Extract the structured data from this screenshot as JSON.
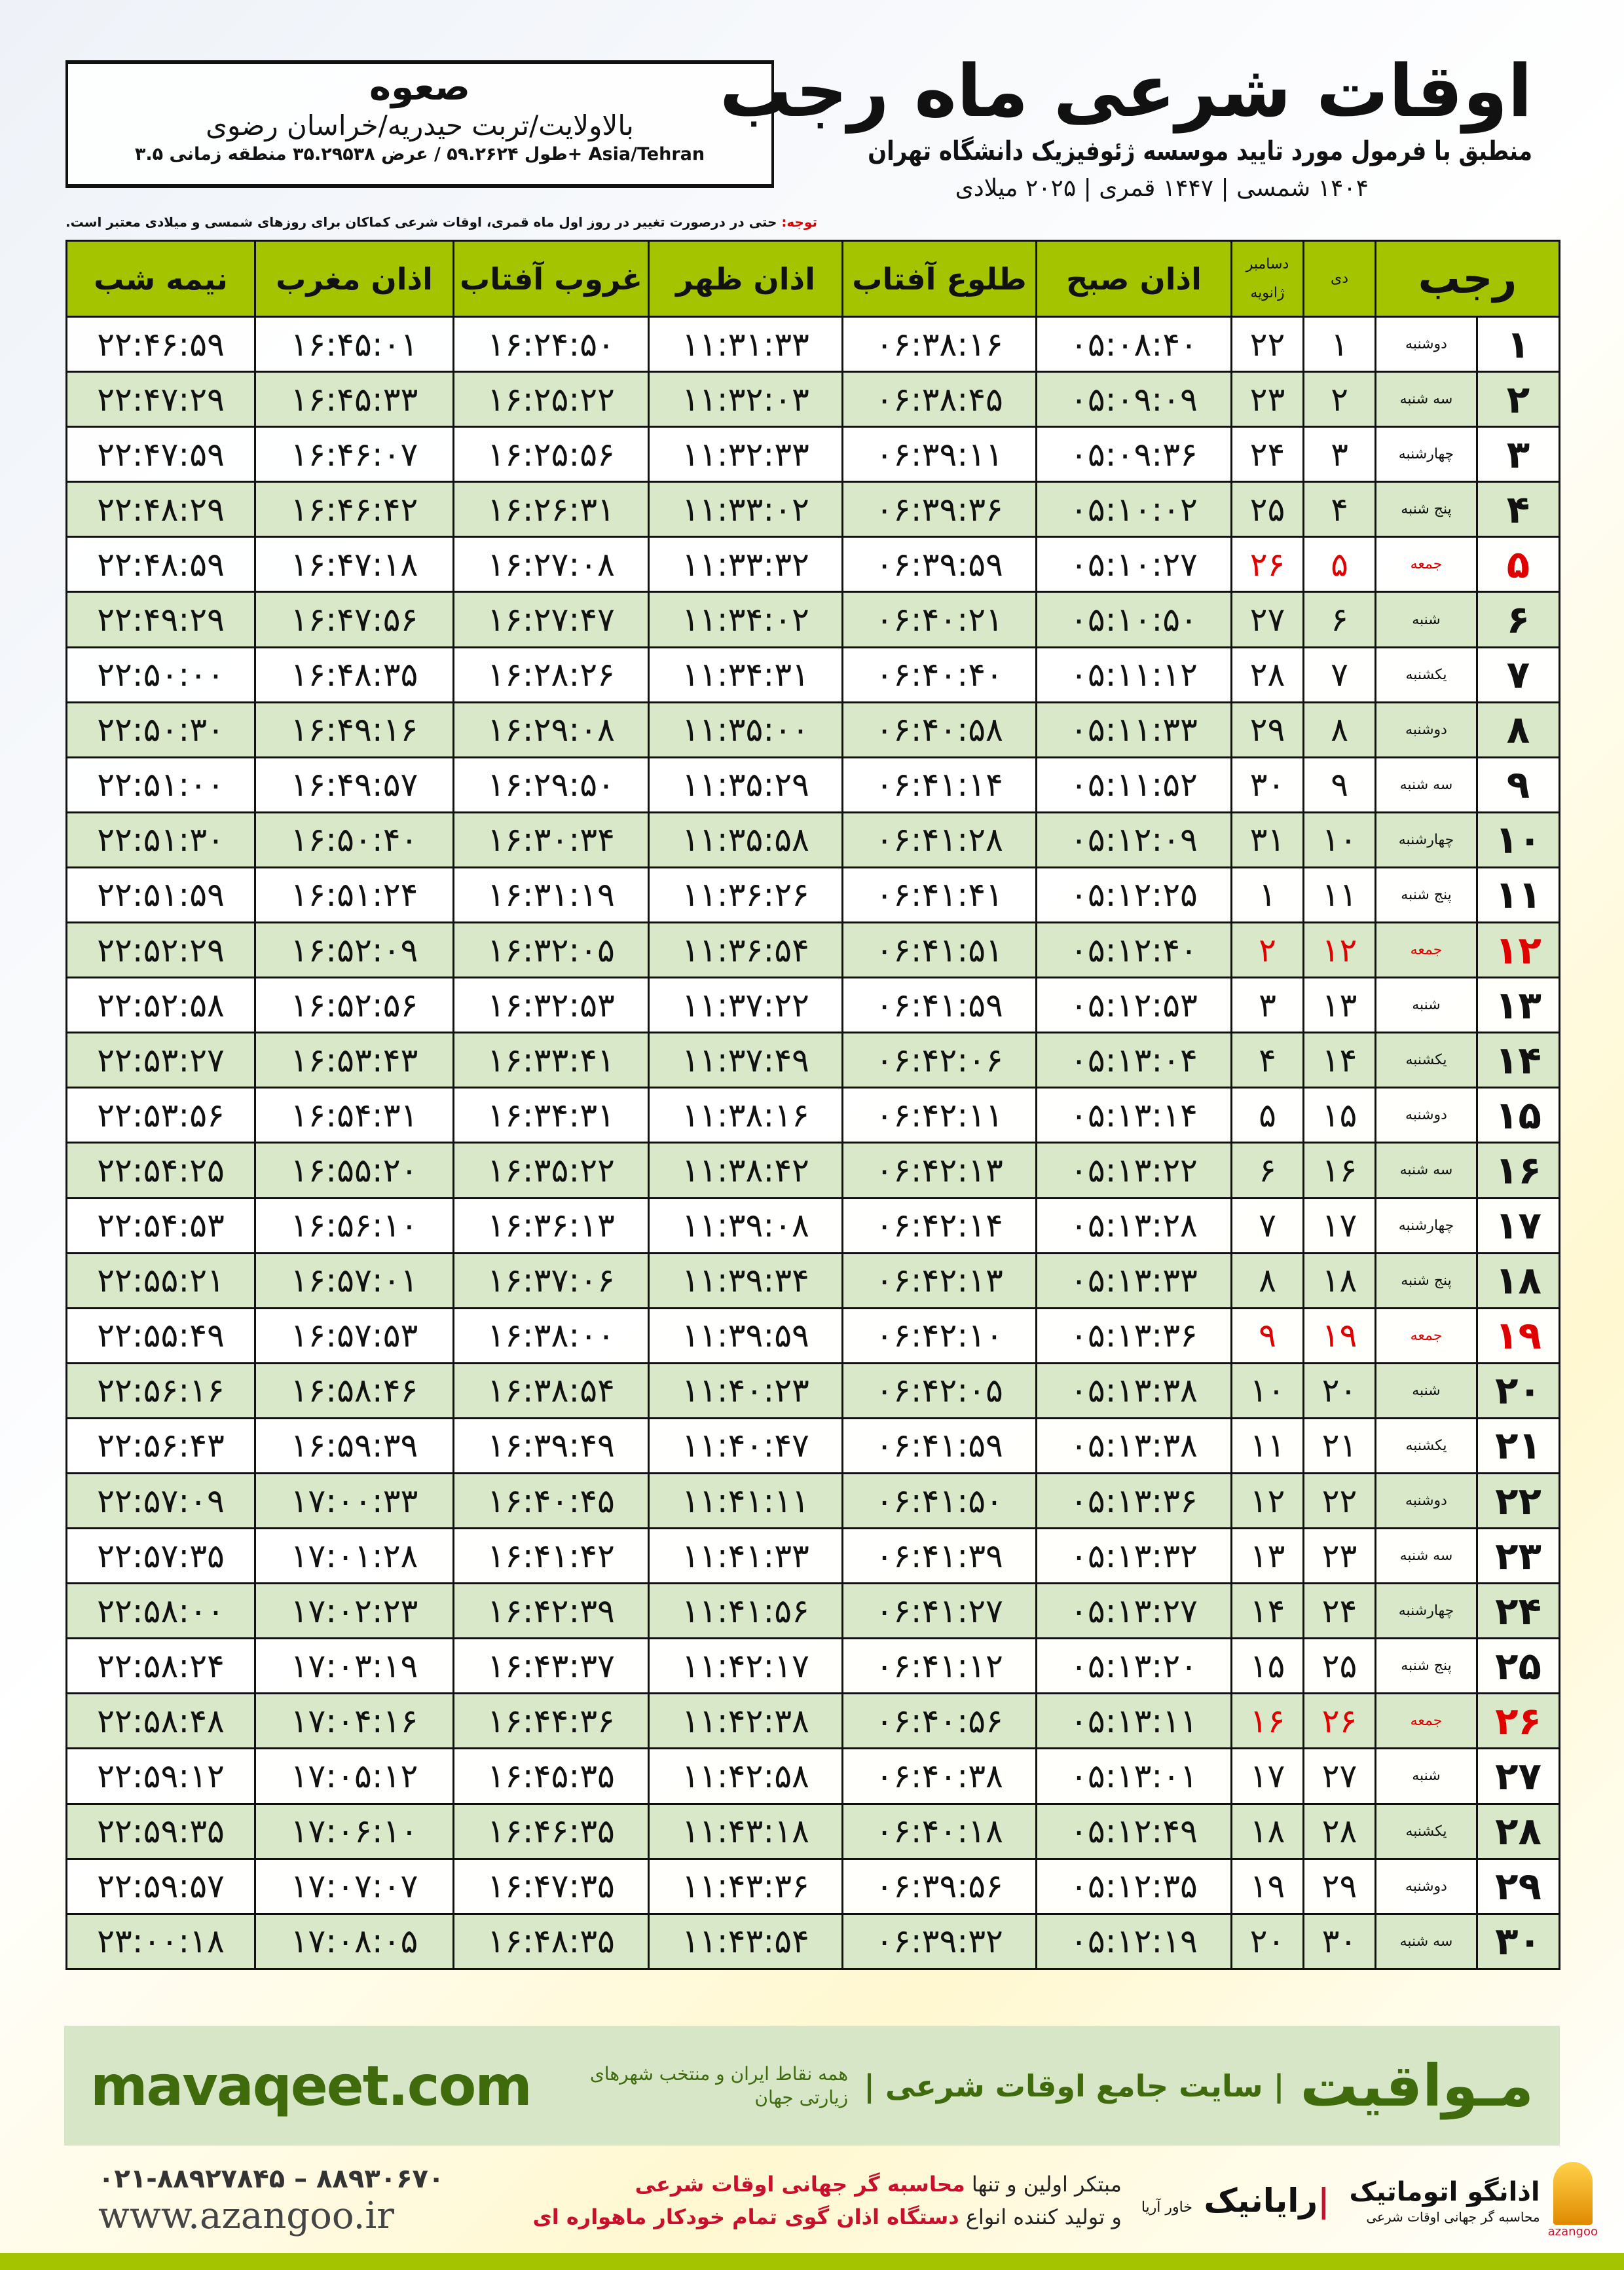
{
  "header": {
    "city": "صعوه",
    "path": "بالاولایت/تربت حیدریه/خراسان رضوی",
    "coords": "طول ۵۹.۲۶۲۴ / عرض ۳۵.۲۹۵۳۸ منطقه زمانی ۳.۵+ Asia/Tehran",
    "title": "اوقات شرعی ماه رجب",
    "subtitle": "منطبق با فرمول مورد تایید موسسه ژئوفیزیک دانشگاه تهران",
    "years": "۱۴۰۴ شمسی | ۱۴۴۷ قمری | ۲۰۲۵ میلادی",
    "note_label": "توجه:",
    "note": " حتی در درصورت تغییر در روز اول ماه قمری، اوقات شرعی کماکان برای روزهای شمسی و میلادی معتبر است."
  },
  "columns": {
    "rajab": "رجب",
    "dey": "دی",
    "greg_top": "دسامبر",
    "greg_bottom": "ژانویه",
    "fajr": "اذان صبح",
    "sunrise": "طلوع آفتاب",
    "dhuhr": "اذان ظهر",
    "sunset": "غروب آفتاب",
    "maghrib": "اذان مغرب",
    "midnight": "نیمه شب"
  },
  "holiday_color": "#e00000",
  "rows": [
    [
      "۱",
      "دوشنبه",
      "۱",
      "۲۲",
      "۰۵:۰۸:۴۰",
      "۰۶:۳۸:۱۶",
      "۱۱:۳۱:۳۳",
      "۱۶:۲۴:۵۰",
      "۱۶:۴۵:۰۱",
      "۲۲:۴۶:۵۹"
    ],
    [
      "۲",
      "سه شنبه",
      "۲",
      "۲۳",
      "۰۵:۰۹:۰۹",
      "۰۶:۳۸:۴۵",
      "۱۱:۳۲:۰۳",
      "۱۶:۲۵:۲۲",
      "۱۶:۴۵:۳۳",
      "۲۲:۴۷:۲۹"
    ],
    [
      "۳",
      "چهارشنبه",
      "۳",
      "۲۴",
      "۰۵:۰۹:۳۶",
      "۰۶:۳۹:۱۱",
      "۱۱:۳۲:۳۳",
      "۱۶:۲۵:۵۶",
      "۱۶:۴۶:۰۷",
      "۲۲:۴۷:۵۹"
    ],
    [
      "۴",
      "پنج شنبه",
      "۴",
      "۲۵",
      "۰۵:۱۰:۰۲",
      "۰۶:۳۹:۳۶",
      "۱۱:۳۳:۰۲",
      "۱۶:۲۶:۳۱",
      "۱۶:۴۶:۴۲",
      "۲۲:۴۸:۲۹"
    ],
    [
      "۵",
      "جمعه",
      "۵",
      "۲۶",
      "۰۵:۱۰:۲۷",
      "۰۶:۳۹:۵۹",
      "۱۱:۳۳:۳۲",
      "۱۶:۲۷:۰۸",
      "۱۶:۴۷:۱۸",
      "۲۲:۴۸:۵۹"
    ],
    [
      "۶",
      "شنبه",
      "۶",
      "۲۷",
      "۰۵:۱۰:۵۰",
      "۰۶:۴۰:۲۱",
      "۱۱:۳۴:۰۲",
      "۱۶:۲۷:۴۷",
      "۱۶:۴۷:۵۶",
      "۲۲:۴۹:۲۹"
    ],
    [
      "۷",
      "یکشنبه",
      "۷",
      "۲۸",
      "۰۵:۱۱:۱۲",
      "۰۶:۴۰:۴۰",
      "۱۱:۳۴:۳۱",
      "۱۶:۲۸:۲۶",
      "۱۶:۴۸:۳۵",
      "۲۲:۵۰:۰۰"
    ],
    [
      "۸",
      "دوشنبه",
      "۸",
      "۲۹",
      "۰۵:۱۱:۳۳",
      "۰۶:۴۰:۵۸",
      "۱۱:۳۵:۰۰",
      "۱۶:۲۹:۰۸",
      "۱۶:۴۹:۱۶",
      "۲۲:۵۰:۳۰"
    ],
    [
      "۹",
      "سه شنبه",
      "۹",
      "۳۰",
      "۰۵:۱۱:۵۲",
      "۰۶:۴۱:۱۴",
      "۱۱:۳۵:۲۹",
      "۱۶:۲۹:۵۰",
      "۱۶:۴۹:۵۷",
      "۲۲:۵۱:۰۰"
    ],
    [
      "۱۰",
      "چهارشنبه",
      "۱۰",
      "۳۱",
      "۰۵:۱۲:۰۹",
      "۰۶:۴۱:۲۸",
      "۱۱:۳۵:۵۸",
      "۱۶:۳۰:۳۴",
      "۱۶:۵۰:۴۰",
      "۲۲:۵۱:۳۰"
    ],
    [
      "۱۱",
      "پنج شنبه",
      "۱۱",
      "۱",
      "۰۵:۱۲:۲۵",
      "۰۶:۴۱:۴۱",
      "۱۱:۳۶:۲۶",
      "۱۶:۳۱:۱۹",
      "۱۶:۵۱:۲۴",
      "۲۲:۵۱:۵۹"
    ],
    [
      "۱۲",
      "جمعه",
      "۱۲",
      "۲",
      "۰۵:۱۲:۴۰",
      "۰۶:۴۱:۵۱",
      "۱۱:۳۶:۵۴",
      "۱۶:۳۲:۰۵",
      "۱۶:۵۲:۰۹",
      "۲۲:۵۲:۲۹"
    ],
    [
      "۱۳",
      "شنبه",
      "۱۳",
      "۳",
      "۰۵:۱۲:۵۳",
      "۰۶:۴۱:۵۹",
      "۱۱:۳۷:۲۲",
      "۱۶:۳۲:۵۳",
      "۱۶:۵۲:۵۶",
      "۲۲:۵۲:۵۸"
    ],
    [
      "۱۴",
      "یکشنبه",
      "۱۴",
      "۴",
      "۰۵:۱۳:۰۴",
      "۰۶:۴۲:۰۶",
      "۱۱:۳۷:۴۹",
      "۱۶:۳۳:۴۱",
      "۱۶:۵۳:۴۳",
      "۲۲:۵۳:۲۷"
    ],
    [
      "۱۵",
      "دوشنبه",
      "۱۵",
      "۵",
      "۰۵:۱۳:۱۴",
      "۰۶:۴۲:۱۱",
      "۱۱:۳۸:۱۶",
      "۱۶:۳۴:۳۱",
      "۱۶:۵۴:۳۱",
      "۲۲:۵۳:۵۶"
    ],
    [
      "۱۶",
      "سه شنبه",
      "۱۶",
      "۶",
      "۰۵:۱۳:۲۲",
      "۰۶:۴۲:۱۳",
      "۱۱:۳۸:۴۲",
      "۱۶:۳۵:۲۲",
      "۱۶:۵۵:۲۰",
      "۲۲:۵۴:۲۵"
    ],
    [
      "۱۷",
      "چهارشنبه",
      "۱۷",
      "۷",
      "۰۵:۱۳:۲۸",
      "۰۶:۴۲:۱۴",
      "۱۱:۳۹:۰۸",
      "۱۶:۳۶:۱۳",
      "۱۶:۵۶:۱۰",
      "۲۲:۵۴:۵۳"
    ],
    [
      "۱۸",
      "پنج شنبه",
      "۱۸",
      "۸",
      "۰۵:۱۳:۳۳",
      "۰۶:۴۲:۱۳",
      "۱۱:۳۹:۳۴",
      "۱۶:۳۷:۰۶",
      "۱۶:۵۷:۰۱",
      "۲۲:۵۵:۲۱"
    ],
    [
      "۱۹",
      "جمعه",
      "۱۹",
      "۹",
      "۰۵:۱۳:۳۶",
      "۰۶:۴۲:۱۰",
      "۱۱:۳۹:۵۹",
      "۱۶:۳۸:۰۰",
      "۱۶:۵۷:۵۳",
      "۲۲:۵۵:۴۹"
    ],
    [
      "۲۰",
      "شنبه",
      "۲۰",
      "۱۰",
      "۰۵:۱۳:۳۸",
      "۰۶:۴۲:۰۵",
      "۱۱:۴۰:۲۳",
      "۱۶:۳۸:۵۴",
      "۱۶:۵۸:۴۶",
      "۲۲:۵۶:۱۶"
    ],
    [
      "۲۱",
      "یکشنبه",
      "۲۱",
      "۱۱",
      "۰۵:۱۳:۳۸",
      "۰۶:۴۱:۵۹",
      "۱۱:۴۰:۴۷",
      "۱۶:۳۹:۴۹",
      "۱۶:۵۹:۳۹",
      "۲۲:۵۶:۴۳"
    ],
    [
      "۲۲",
      "دوشنبه",
      "۲۲",
      "۱۲",
      "۰۵:۱۳:۳۶",
      "۰۶:۴۱:۵۰",
      "۱۱:۴۱:۱۱",
      "۱۶:۴۰:۴۵",
      "۱۷:۰۰:۳۳",
      "۲۲:۵۷:۰۹"
    ],
    [
      "۲۳",
      "سه شنبه",
      "۲۳",
      "۱۳",
      "۰۵:۱۳:۳۲",
      "۰۶:۴۱:۳۹",
      "۱۱:۴۱:۳۳",
      "۱۶:۴۱:۴۲",
      "۱۷:۰۱:۲۸",
      "۲۲:۵۷:۳۵"
    ],
    [
      "۲۴",
      "چهارشنبه",
      "۲۴",
      "۱۴",
      "۰۵:۱۳:۲۷",
      "۰۶:۴۱:۲۷",
      "۱۱:۴۱:۵۶",
      "۱۶:۴۲:۳۹",
      "۱۷:۰۲:۲۳",
      "۲۲:۵۸:۰۰"
    ],
    [
      "۲۵",
      "پنج شنبه",
      "۲۵",
      "۱۵",
      "۰۵:۱۳:۲۰",
      "۰۶:۴۱:۱۲",
      "۱۱:۴۲:۱۷",
      "۱۶:۴۳:۳۷",
      "۱۷:۰۳:۱۹",
      "۲۲:۵۸:۲۴"
    ],
    [
      "۲۶",
      "جمعه",
      "۲۶",
      "۱۶",
      "۰۵:۱۳:۱۱",
      "۰۶:۴۰:۵۶",
      "۱۱:۴۲:۳۸",
      "۱۶:۴۴:۳۶",
      "۱۷:۰۴:۱۶",
      "۲۲:۵۸:۴۸"
    ],
    [
      "۲۷",
      "شنبه",
      "۲۷",
      "۱۷",
      "۰۵:۱۳:۰۱",
      "۰۶:۴۰:۳۸",
      "۱۱:۴۲:۵۸",
      "۱۶:۴۵:۳۵",
      "۱۷:۰۵:۱۲",
      "۲۲:۵۹:۱۲"
    ],
    [
      "۲۸",
      "یکشنبه",
      "۲۸",
      "۱۸",
      "۰۵:۱۲:۴۹",
      "۰۶:۴۰:۱۸",
      "۱۱:۴۳:۱۸",
      "۱۶:۴۶:۳۵",
      "۱۷:۰۶:۱۰",
      "۲۲:۵۹:۳۵"
    ],
    [
      "۲۹",
      "دوشنبه",
      "۲۹",
      "۱۹",
      "۰۵:۱۲:۳۵",
      "۰۶:۳۹:۵۶",
      "۱۱:۴۳:۳۶",
      "۱۶:۴۷:۳۵",
      "۱۷:۰۷:۰۷",
      "۲۲:۵۹:۵۷"
    ],
    [
      "۳۰",
      "سه شنبه",
      "۳۰",
      "۲۰",
      "۰۵:۱۲:۱۹",
      "۰۶:۳۹:۳۲",
      "۱۱:۴۳:۵۴",
      "۱۶:۴۸:۳۵",
      "۱۷:۰۸:۰۵",
      "۲۳:۰۰:۱۸"
    ]
  ],
  "footer": {
    "brand": "مـواقیت",
    "slogan": "| سایت جامع اوقات شرعی |",
    "sub": "همه نقاط ایران و منتخب شهرهای زیارتی جهان",
    "site": "mavaqeet.com",
    "phone": "۰۲۱-۸۸۹۲۷۸۴۵ – ۸۸۹۳۰۶۷۰",
    "web": "www.azangoo.ir",
    "promo1a": "مبتکر اولین و تنها ",
    "promo1b": "محاسبه گر جهانی اوقات شرعی",
    "promo2a": "و تولید کننده انواع ",
    "promo2b": "دستگاه اذان گوی تمام خودکار ماهواره ای",
    "logo1": "رایانیک",
    "logo1_sub": "خاور آریا",
    "logo2": "اذانگو اتوماتیک",
    "logo2_sub": "محاسبه گر جهانی اوقات شرعی",
    "logo2_en": "azangoo"
  }
}
